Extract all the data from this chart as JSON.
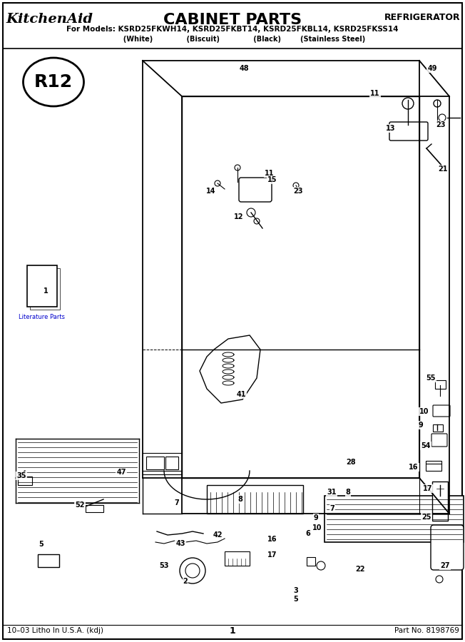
{
  "title": "CABINET PARTS",
  "brand": "KitchenAid.",
  "category": "REFRIGERATOR",
  "models_line": "For Models: KSRD25FKWH14, KSRD25FKBT14, KSRD25FKBL14, KSRD25FKSS14",
  "subtitles": "           (White)              (Biscuit)              (Black)       (Stainless Steel)",
  "footer_left": "10–03 Litho In U.S.A. (kdj)",
  "footer_center": "1",
  "footer_right": "Part No. 8198769",
  "bg_color": "#ffffff",
  "figwidth": 6.52,
  "figheight": 9.0
}
